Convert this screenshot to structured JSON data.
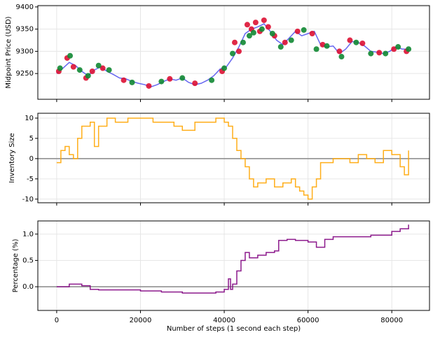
{
  "chart_data": [
    {
      "type": "line",
      "ylabel": "Midpoint Price (USD)",
      "xlim": [
        -4500,
        89000
      ],
      "ylim": [
        9192,
        9403
      ],
      "yticks": [
        9250,
        9300,
        9350,
        9400
      ],
      "grid": true,
      "series": [
        {
          "mode": "line",
          "color": "#5555ee",
          "x": [
            0,
            1500,
            3000,
            4500,
            6000,
            7500,
            9000,
            10500,
            12000,
            13500,
            15000,
            16500,
            18000,
            19500,
            21000,
            22500,
            24000,
            25500,
            27000,
            28500,
            30000,
            31500,
            33000,
            34500,
            36000,
            37500,
            39000,
            40500,
            42000,
            43500,
            45000,
            46500,
            48000,
            49500,
            51000,
            52500,
            54000,
            55500,
            57000,
            58500,
            60000,
            61500,
            63000,
            64500,
            66000,
            67500,
            69000,
            70500,
            72000,
            73500,
            75000,
            76500,
            78000,
            79500,
            81000,
            82500,
            84000
          ],
          "values": [
            9250,
            9262,
            9275,
            9268,
            9255,
            9245,
            9258,
            9265,
            9255,
            9248,
            9240,
            9238,
            9232,
            9228,
            9225,
            9220,
            9225,
            9232,
            9238,
            9235,
            9240,
            9230,
            9225,
            9228,
            9235,
            9245,
            9260,
            9265,
            9285,
            9310,
            9340,
            9350,
            9355,
            9362,
            9345,
            9325,
            9315,
            9330,
            9345,
            9335,
            9340,
            9345,
            9315,
            9310,
            9312,
            9295,
            9305,
            9322,
            9320,
            9312,
            9300,
            9298,
            9295,
            9300,
            9310,
            9305,
            9305
          ]
        },
        {
          "mode": "markers",
          "color": "#dd1133",
          "x": [
            500,
            2500,
            4000,
            7000,
            8500,
            11000,
            16000,
            22000,
            27000,
            33000,
            39500,
            42500,
            43500,
            45500,
            46500,
            47500,
            48500,
            49500,
            50500,
            52000,
            54500,
            57500,
            61000,
            63500,
            67500,
            70000,
            73000,
            77000,
            80500,
            83500
          ],
          "values": [
            9255,
            9285,
            9265,
            9240,
            9255,
            9262,
            9235,
            9222,
            9238,
            9228,
            9255,
            9320,
            9300,
            9360,
            9350,
            9365,
            9345,
            9370,
            9355,
            9335,
            9320,
            9345,
            9340,
            9315,
            9300,
            9325,
            9318,
            9297,
            9305,
            9300
          ]
        },
        {
          "mode": "markers",
          "color": "#118833",
          "x": [
            800,
            3200,
            5500,
            7500,
            10000,
            12500,
            18000,
            25000,
            30000,
            37000,
            40000,
            42000,
            44500,
            46000,
            47000,
            49000,
            51500,
            53500,
            56000,
            59000,
            62000,
            64500,
            68000,
            71500,
            75000,
            78500,
            81500,
            84000
          ],
          "values": [
            9262,
            9290,
            9258,
            9245,
            9268,
            9258,
            9230,
            9232,
            9240,
            9235,
            9262,
            9295,
            9320,
            9335,
            9342,
            9350,
            9340,
            9310,
            9325,
            9348,
            9305,
            9312,
            9288,
            9320,
            9295,
            9295,
            9310,
            9305
          ]
        }
      ]
    },
    {
      "type": "line",
      "ylabel": "Inventory Size",
      "step": true,
      "hline": 0,
      "hline_color": "#888888",
      "xlim": [
        -4500,
        89000
      ],
      "ylim": [
        -10.9,
        11.2
      ],
      "yticks": [
        -10,
        -5,
        0,
        5,
        10
      ],
      "grid": true,
      "series": [
        {
          "mode": "line",
          "color": "#ffa500",
          "x": [
            0,
            1000,
            2000,
            3000,
            4000,
            5000,
            6000,
            8000,
            9000,
            10000,
            12000,
            14000,
            17000,
            20000,
            23000,
            26000,
            28000,
            30000,
            33000,
            36000,
            38000,
            40000,
            41000,
            42000,
            43000,
            44000,
            45000,
            46000,
            47000,
            48000,
            50000,
            52000,
            54000,
            56000,
            57000,
            58000,
            59000,
            60000,
            61000,
            62000,
            63000,
            66000,
            70000,
            72000,
            74000,
            76000,
            78000,
            80000,
            82000,
            83000,
            84000
          ],
          "values": [
            -1,
            2,
            3,
            1,
            0,
            5,
            8,
            9,
            3,
            8,
            10,
            9,
            10,
            10,
            9,
            9,
            8,
            7,
            9,
            9,
            10,
            9,
            8,
            5,
            2,
            0,
            -2,
            -5,
            -7,
            -6,
            -5,
            -7,
            -6,
            -5,
            -7,
            -8,
            -9,
            -10,
            -7,
            -5,
            -1,
            0,
            -1,
            1,
            0,
            -1,
            2,
            1,
            -2,
            -4,
            2
          ]
        }
      ]
    },
    {
      "type": "line",
      "ylabel": "Percentage (%)",
      "xlabel": "Number of steps (1 second each step)",
      "step": true,
      "hline": 0,
      "hline_color": "#888888",
      "xlim": [
        -4500,
        89000
      ],
      "ylim": [
        -0.45,
        1.25
      ],
      "yticks": [
        {
          "value": 0,
          "label": "0.0"
        },
        {
          "value": 0.5,
          "label": "0.5"
        },
        {
          "value": 1,
          "label": "1.0"
        }
      ],
      "xticks": [
        0,
        20000,
        40000,
        60000,
        80000
      ],
      "grid": true,
      "series": [
        {
          "mode": "line",
          "color": "#800080",
          "x": [
            0,
            3000,
            6000,
            8000,
            10000,
            15000,
            20000,
            25000,
            30000,
            35000,
            38000,
            40000,
            41000,
            41500,
            42000,
            43000,
            44000,
            45000,
            46000,
            48000,
            50000,
            52000,
            53000,
            55000,
            57000,
            60000,
            62000,
            64000,
            66000,
            70000,
            75000,
            80000,
            82000,
            84000
          ],
          "values": [
            0,
            0.05,
            0.02,
            -0.05,
            -0.06,
            -0.06,
            -0.08,
            -0.1,
            -0.12,
            -0.12,
            -0.1,
            -0.05,
            0.15,
            -0.05,
            0.05,
            0.3,
            0.5,
            0.65,
            0.55,
            0.6,
            0.65,
            0.68,
            0.88,
            0.9,
            0.88,
            0.85,
            0.75,
            0.9,
            0.95,
            0.95,
            0.98,
            1.05,
            1.1,
            1.18
          ]
        }
      ]
    }
  ]
}
